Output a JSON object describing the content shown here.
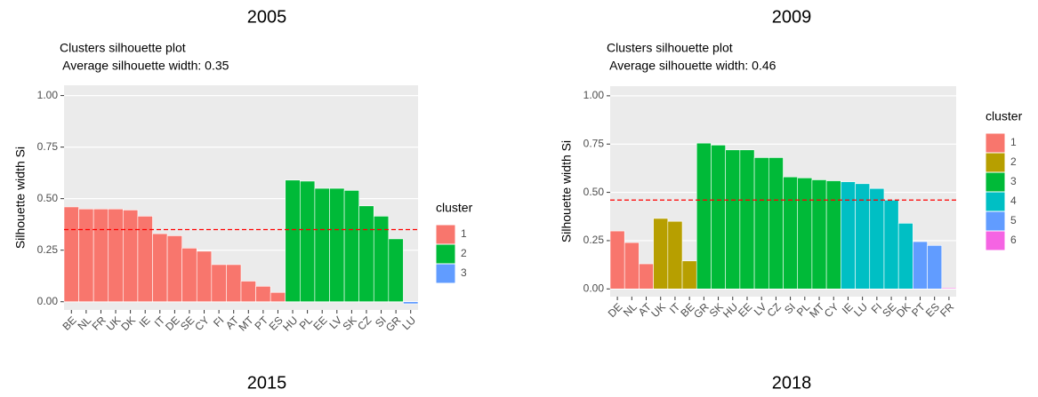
{
  "panel_labels": [
    "2005",
    "2009",
    "2015",
    "2018"
  ],
  "chart_data": [
    {
      "type": "bar",
      "title": "Clusters silhouette plot",
      "subtitle": " Average silhouette width: 0.35",
      "y_label": "Silhouette width Si",
      "average_line": 0.35,
      "average_line_color": "#ff0000",
      "categories": [
        "BE",
        "NL",
        "FR",
        "UK",
        "DK",
        "IE",
        "IT",
        "DE",
        "SE",
        "CY",
        "FI",
        "AT",
        "MT",
        "PT",
        "ES",
        "HU",
        "PL",
        "EE",
        "LV",
        "SK",
        "CZ",
        "SI",
        "GR",
        "LU"
      ],
      "values": [
        0.46,
        0.45,
        0.45,
        0.45,
        0.445,
        0.415,
        0.33,
        0.32,
        0.26,
        0.245,
        0.18,
        0.18,
        0.1,
        0.075,
        0.045,
        0.59,
        0.585,
        0.55,
        0.55,
        0.54,
        0.465,
        0.415,
        0.305,
        -0.01
      ],
      "clusters": [
        "1",
        "1",
        "1",
        "1",
        "1",
        "1",
        "1",
        "1",
        "1",
        "1",
        "1",
        "1",
        "1",
        "1",
        "1",
        "2",
        "2",
        "2",
        "2",
        "2",
        "2",
        "2",
        "2",
        "3"
      ],
      "legend": {
        "title": "cluster",
        "entries": [
          {
            "name": "1",
            "color": "#F8766D"
          },
          {
            "name": "2",
            "color": "#00BA38"
          },
          {
            "name": "3",
            "color": "#619CFF"
          }
        ]
      },
      "ylim": [
        -0.04,
        1.05
      ],
      "yticks": [
        {
          "value": 0,
          "label": "0.00"
        },
        {
          "value": 0.25,
          "label": "0.25"
        },
        {
          "value": 0.5,
          "label": "0.50"
        },
        {
          "value": 0.75,
          "label": "0.75"
        },
        {
          "value": 1,
          "label": "1.00"
        }
      ],
      "grid": true
    },
    {
      "type": "bar",
      "title": "Clusters silhouette plot",
      "subtitle": " Average silhouette width: 0.46",
      "y_label": "Silhouette width Si",
      "average_line": 0.46,
      "average_line_color": "#ff0000",
      "categories": [
        "DE",
        "NL",
        "AT",
        "UK",
        "IT",
        "BE",
        "GR",
        "SK",
        "HU",
        "EE",
        "LV",
        "CZ",
        "SI",
        "PL",
        "MT",
        "CY",
        "IE",
        "LU",
        "FI",
        "SE",
        "DK",
        "PT",
        "ES",
        "FR"
      ],
      "values": [
        0.3,
        0.24,
        0.13,
        0.365,
        0.35,
        0.145,
        0.755,
        0.745,
        0.72,
        0.72,
        0.68,
        0.68,
        0.58,
        0.575,
        0.565,
        0.56,
        0.555,
        0.545,
        0.52,
        0.46,
        0.34,
        0.245,
        0.225,
        0.005
      ],
      "clusters": [
        "1",
        "1",
        "1",
        "2",
        "2",
        "2",
        "3",
        "3",
        "3",
        "3",
        "3",
        "3",
        "3",
        "3",
        "3",
        "3",
        "4",
        "4",
        "4",
        "4",
        "4",
        "5",
        "5",
        "6"
      ],
      "legend": {
        "title": "cluster",
        "entries": [
          {
            "name": "1",
            "color": "#F8766D"
          },
          {
            "name": "2",
            "color": "#B79F00"
          },
          {
            "name": "3",
            "color": "#00BA38"
          },
          {
            "name": "4",
            "color": "#00BFC4"
          },
          {
            "name": "5",
            "color": "#619CFF"
          },
          {
            "name": "6",
            "color": "#F564E3"
          }
        ]
      },
      "ylim": [
        -0.04,
        1.05
      ],
      "yticks": [
        {
          "value": 0,
          "label": "0.00"
        },
        {
          "value": 0.25,
          "label": "0.25"
        },
        {
          "value": 0.5,
          "label": "0.50"
        },
        {
          "value": 0.75,
          "label": "0.75"
        },
        {
          "value": 1,
          "label": "1.00"
        }
      ],
      "grid": true
    }
  ]
}
